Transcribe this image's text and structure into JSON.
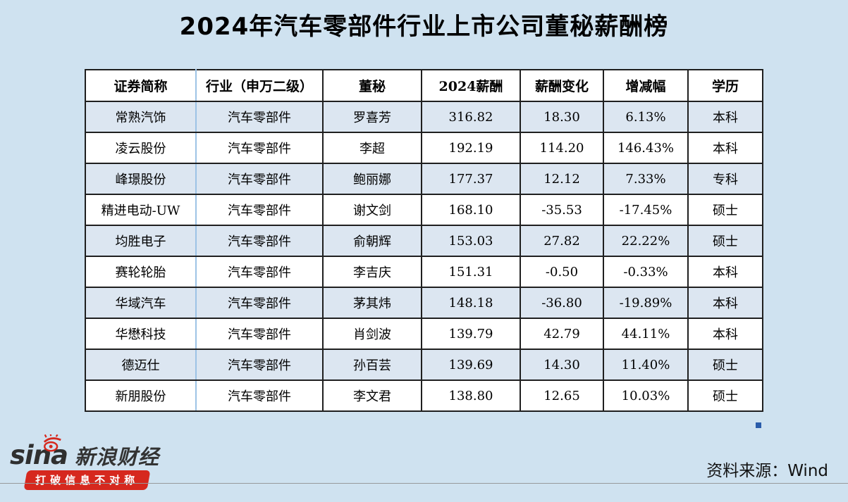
{
  "title": "2024年汽车零部件行业上市公司董秘薪酬榜",
  "table": {
    "headers": [
      "证券简称",
      "行业（申万二级）",
      "董秘",
      "2024薪酬",
      "薪酬变化",
      "增减幅",
      "学历"
    ],
    "rows": [
      [
        "常熟汽饰",
        "汽车零部件",
        "罗喜芳",
        "316.82",
        "18.30",
        "6.13%",
        "本科"
      ],
      [
        "凌云股份",
        "汽车零部件",
        "李超",
        "192.19",
        "114.20",
        "146.43%",
        "本科"
      ],
      [
        "峰璟股份",
        "汽车零部件",
        "鲍丽娜",
        "177.37",
        "12.12",
        "7.33%",
        "专科"
      ],
      [
        "精进电动-UW",
        "汽车零部件",
        "谢文剑",
        "168.10",
        "-35.53",
        "-17.45%",
        "硕士"
      ],
      [
        "均胜电子",
        "汽车零部件",
        "俞朝辉",
        "153.03",
        "27.82",
        "22.22%",
        "硕士"
      ],
      [
        "赛轮轮胎",
        "汽车零部件",
        "李吉庆",
        "151.31",
        "-0.50",
        "-0.33%",
        "本科"
      ],
      [
        "华域汽车",
        "汽车零部件",
        "茅其炜",
        "148.18",
        "-36.80",
        "-19.89%",
        "本科"
      ],
      [
        "华懋科技",
        "汽车零部件",
        "肖剑波",
        "139.79",
        "42.79",
        "44.11%",
        "本科"
      ],
      [
        "德迈仕",
        "汽车零部件",
        "孙百芸",
        "139.69",
        "14.30",
        "11.40%",
        "硕士"
      ],
      [
        "新朋股份",
        "汽车零部件",
        "李文君",
        "138.80",
        "12.65",
        "10.03%",
        "硕士"
      ]
    ]
  },
  "chart_data": {
    "type": "table",
    "title": "2024年汽车零部件行业上市公司董秘薪酬榜",
    "columns": [
      "证券简称",
      "行业（申万二级）",
      "董秘",
      "2024薪酬",
      "薪酬变化",
      "增减幅",
      "学历"
    ],
    "rows": [
      {
        "company": "常熟汽饰",
        "industry": "汽车零部件",
        "secretary": "罗喜芳",
        "salary_2024": 316.82,
        "change": 18.3,
        "change_pct": "6.13%",
        "education": "本科"
      },
      {
        "company": "凌云股份",
        "industry": "汽车零部件",
        "secretary": "李超",
        "salary_2024": 192.19,
        "change": 114.2,
        "change_pct": "146.43%",
        "education": "本科"
      },
      {
        "company": "峰璟股份",
        "industry": "汽车零部件",
        "secretary": "鲍丽娜",
        "salary_2024": 177.37,
        "change": 12.12,
        "change_pct": "7.33%",
        "education": "专科"
      },
      {
        "company": "精进电动-UW",
        "industry": "汽车零部件",
        "secretary": "谢文剑",
        "salary_2024": 168.1,
        "change": -35.53,
        "change_pct": "-17.45%",
        "education": "硕士"
      },
      {
        "company": "均胜电子",
        "industry": "汽车零部件",
        "secretary": "俞朝辉",
        "salary_2024": 153.03,
        "change": 27.82,
        "change_pct": "22.22%",
        "education": "硕士"
      },
      {
        "company": "赛轮轮胎",
        "industry": "汽车零部件",
        "secretary": "李吉庆",
        "salary_2024": 151.31,
        "change": -0.5,
        "change_pct": "-0.33%",
        "education": "本科"
      },
      {
        "company": "华域汽车",
        "industry": "汽车零部件",
        "secretary": "茅其炜",
        "salary_2024": 148.18,
        "change": -36.8,
        "change_pct": "-19.89%",
        "education": "本科"
      },
      {
        "company": "华懋科技",
        "industry": "汽车零部件",
        "secretary": "肖剑波",
        "salary_2024": 139.79,
        "change": 42.79,
        "change_pct": "44.11%",
        "education": "本科"
      },
      {
        "company": "德迈仕",
        "industry": "汽车零部件",
        "secretary": "孙百芸",
        "salary_2024": 139.69,
        "change": 14.3,
        "change_pct": "11.40%",
        "education": "硕士"
      },
      {
        "company": "新朋股份",
        "industry": "汽车零部件",
        "secretary": "李文君",
        "salary_2024": 138.8,
        "change": 12.65,
        "change_pct": "10.03%",
        "education": "硕士"
      }
    ]
  },
  "footer": {
    "logo_text": "sina",
    "logo_brand": "新浪财经",
    "logo_slogan": "打破信息不对称",
    "source": "资料来源：Wind"
  },
  "colors": {
    "page_bg": "#cfe2f0",
    "row_alt_bg": "#dce6f1",
    "row_bg": "#ffffff",
    "table_border": "#1f1f1f",
    "frozen_divider": "#9dc3e6",
    "brand_red": "#d6281e",
    "selection_handle": "#2a5caa"
  }
}
